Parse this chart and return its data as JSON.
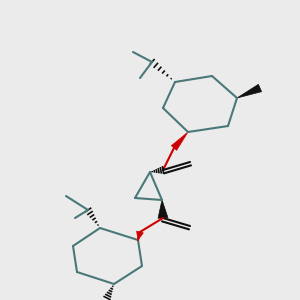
{
  "bg_color": "#ebebeb",
  "bond_color": "#4a7878",
  "bond_width": 1.5,
  "red_color": "#cc0000",
  "black_color": "#111111",
  "fig_w": 3.0,
  "fig_h": 3.0,
  "dpi": 100
}
